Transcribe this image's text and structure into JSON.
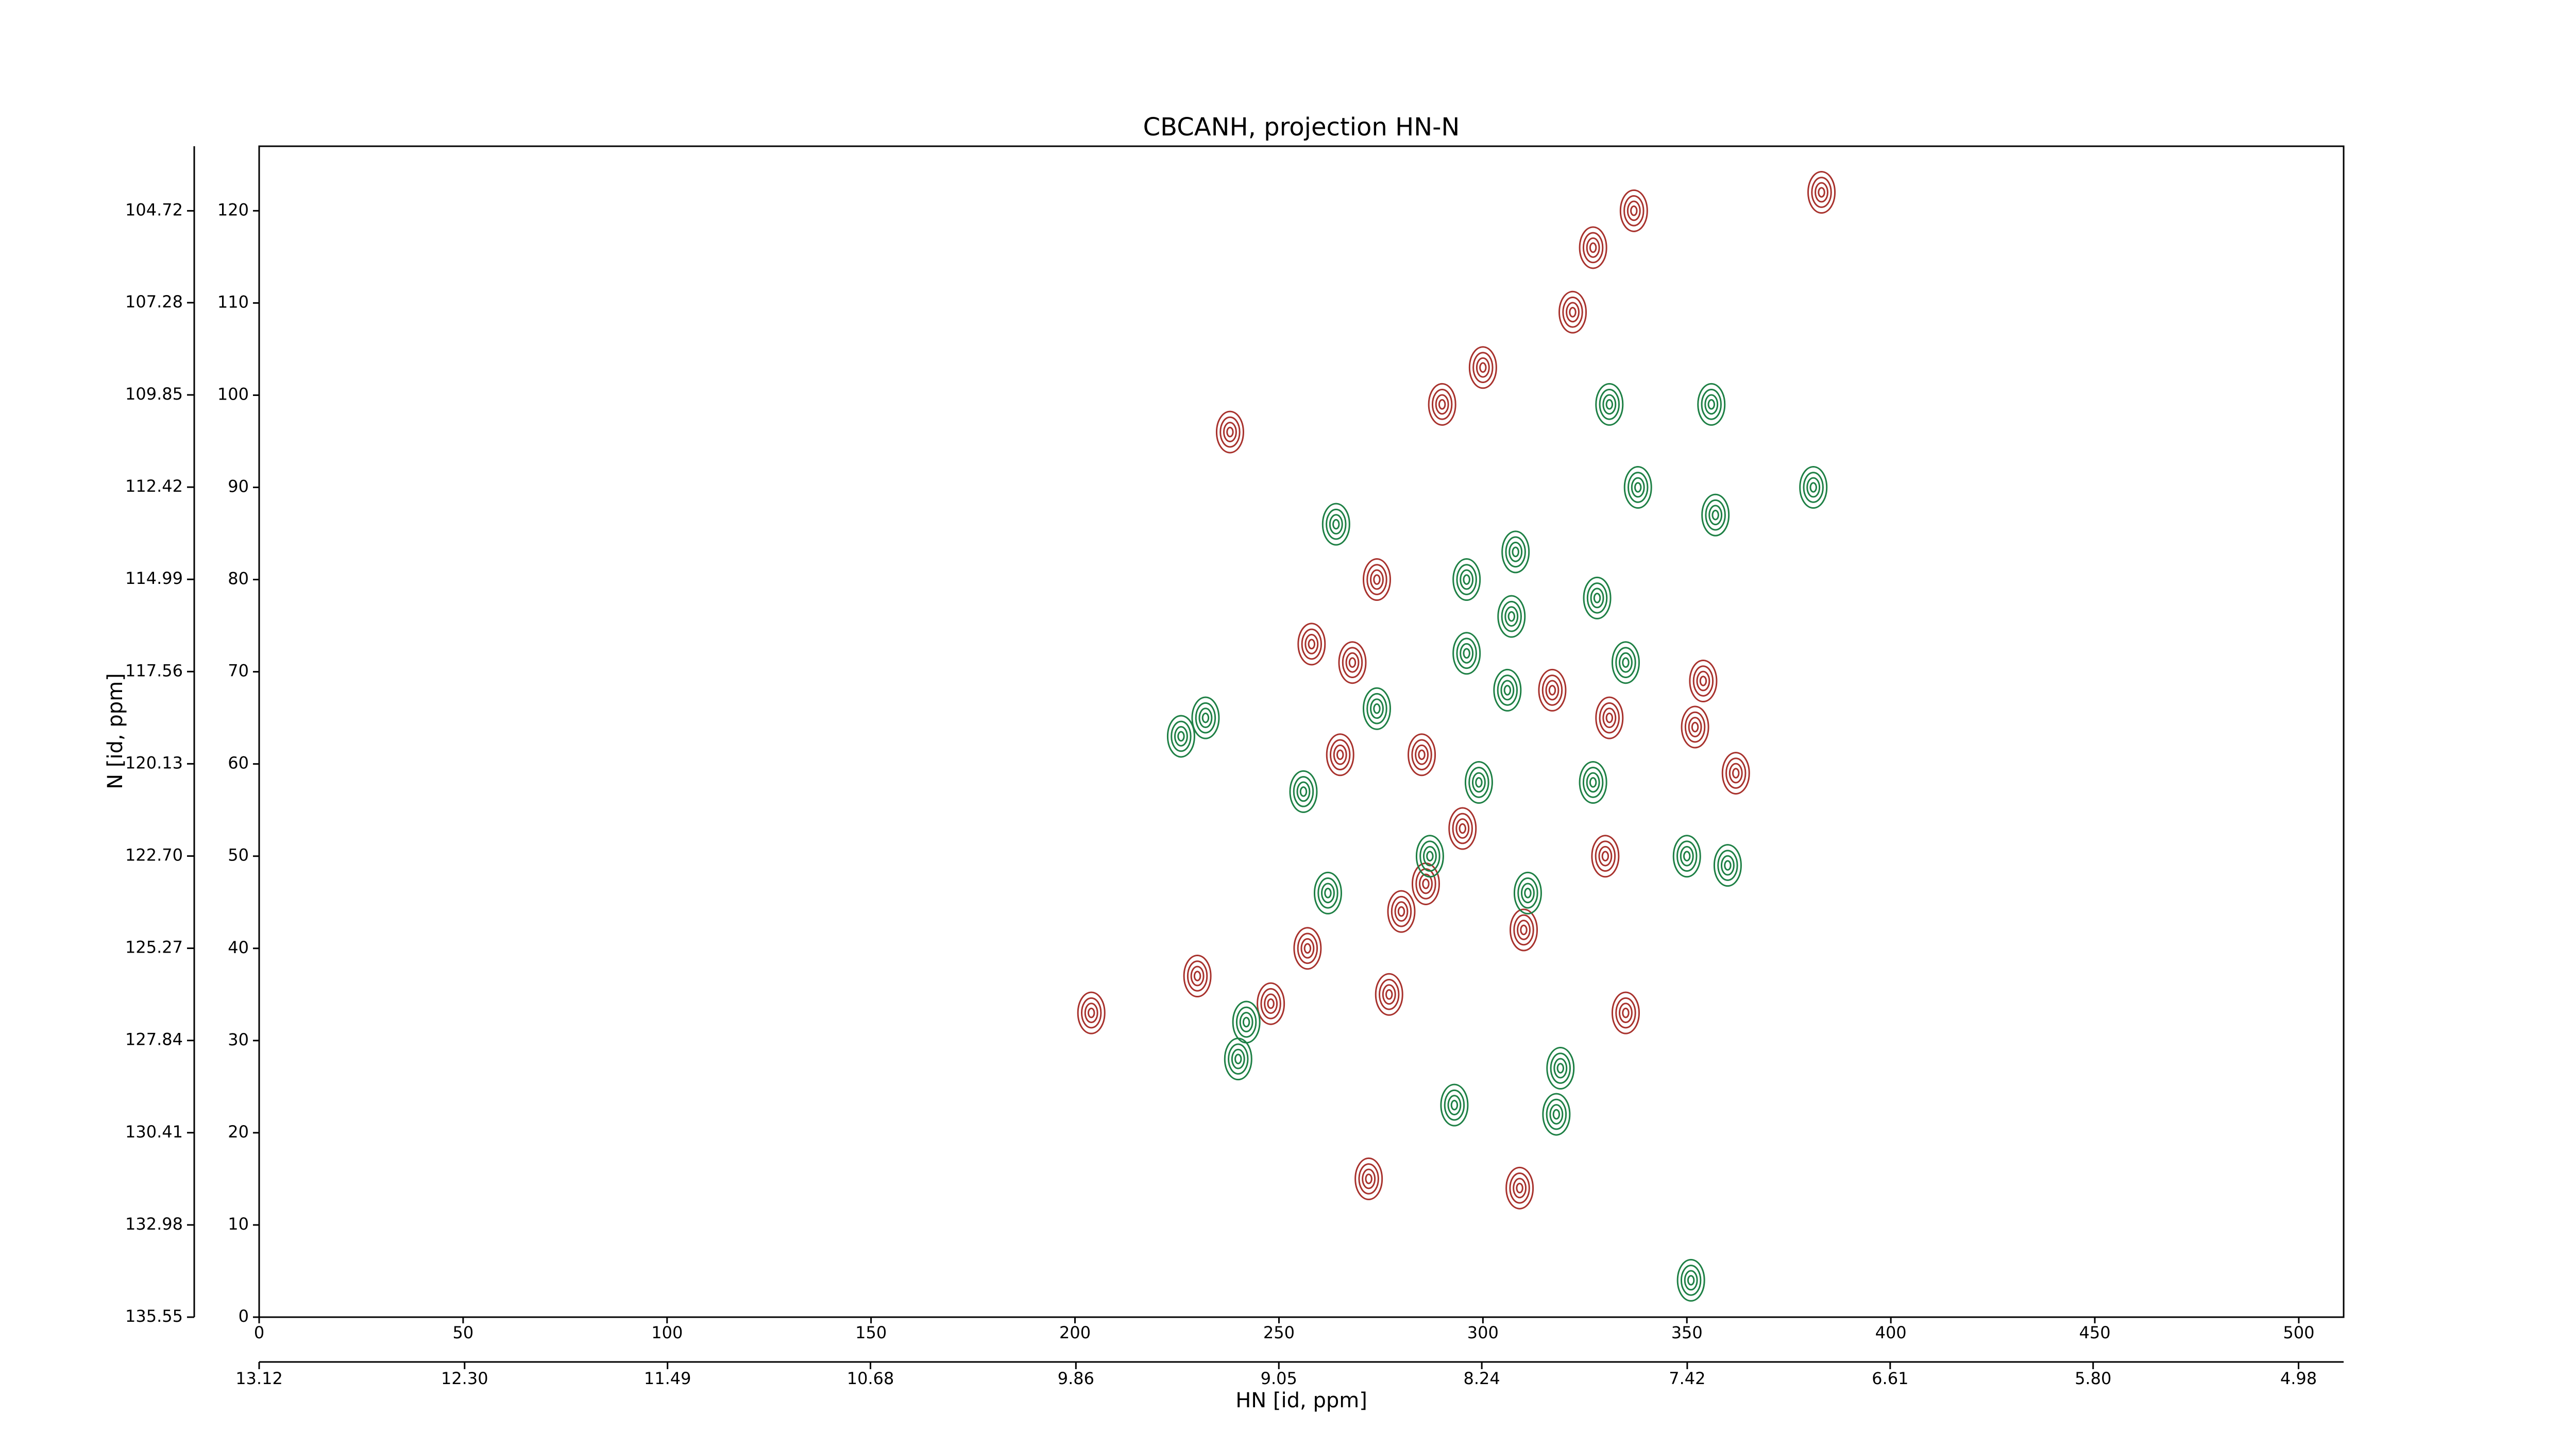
{
  "chart_data": {
    "type": "contour",
    "title": "CBCANH, projection HN-N",
    "xlabel": "HN [id, ppm]",
    "ylabel": "N [id, ppm]",
    "xlim": [
      0,
      511
    ],
    "xticks": [
      0,
      50,
      100,
      150,
      200,
      250,
      300,
      350,
      400,
      450,
      500
    ],
    "ylim": [
      0,
      127
    ],
    "yticks": [
      0,
      10,
      20,
      30,
      40,
      50,
      60,
      70,
      80,
      90,
      100,
      110,
      120
    ],
    "x2lim": [
      13.12,
      4.8
    ],
    "x2ticks": [
      13.12,
      {
        "value": 12.3,
        "label": "12.30"
      },
      11.49,
      10.68,
      9.86,
      9.05,
      8.24,
      7.42,
      6.61,
      {
        "value": 5.8,
        "label": "5.80"
      },
      4.98
    ],
    "y2lim": [
      135.55,
      102.92
    ],
    "y2ticks": [
      135.55,
      132.98,
      130.41,
      127.84,
      125.27,
      {
        "value": 122.7,
        "label": "122.70"
      },
      120.13,
      117.56,
      114.99,
      112.42,
      109.85,
      107.28,
      104.72
    ],
    "series": [
      {
        "color": "#a8322d",
        "x": [
          383,
          337,
          327,
          322,
          238,
          274,
          265,
          285,
          352,
          362,
          331,
          317,
          354,
          258,
          268,
          230,
          248,
          204,
          257,
          277,
          335,
          330,
          309,
          272,
          295,
          286,
          300,
          290,
          310,
          280
        ],
        "y": [
          122,
          120,
          116,
          109,
          96,
          80,
          61,
          61,
          64,
          59,
          65,
          68,
          69,
          73,
          71,
          37,
          34,
          33,
          40,
          35,
          33,
          50,
          14,
          15,
          53,
          47,
          103,
          99,
          42,
          44
        ]
      },
      {
        "color": "#1e8045",
        "x": [
          308,
          264,
          356,
          331,
          357,
          338,
          381,
          328,
          296,
          307,
          296,
          335,
          306,
          232,
          226,
          256,
          327,
          350,
          360,
          319,
          318,
          293,
          262,
          242,
          240,
          299,
          287,
          311,
          351,
          274
        ],
        "y": [
          83,
          86,
          99,
          99,
          87,
          90,
          90,
          78,
          80,
          76,
          72,
          71,
          68,
          65,
          63,
          57,
          58,
          50,
          49,
          27,
          22,
          23,
          46,
          32,
          28,
          58,
          50,
          46,
          4,
          66
        ]
      }
    ]
  }
}
